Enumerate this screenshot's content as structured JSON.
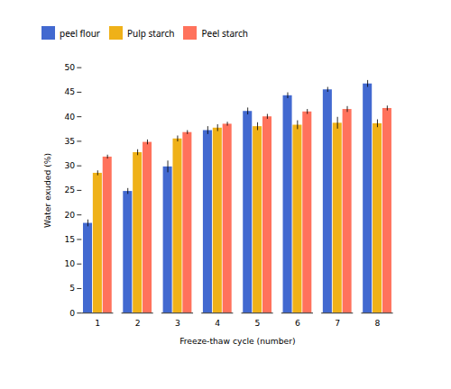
{
  "chart_data": {
    "type": "bar",
    "xlabel": "Freeze-thaw cycle (number)",
    "ylabel": "Water exuded (%)",
    "categories": [
      1,
      2,
      3,
      4,
      5,
      6,
      7,
      8
    ],
    "series": [
      {
        "name": "peel flour",
        "values": [
          18.3,
          24.8,
          29.8,
          37.2,
          41.1,
          44.3,
          45.5,
          46.7
        ],
        "errors": [
          0.7,
          0.6,
          1.2,
          0.8,
          0.7,
          0.6,
          0.5,
          0.7
        ]
      },
      {
        "name": "Pulp starch",
        "values": [
          28.5,
          32.7,
          35.5,
          37.7,
          38.0,
          38.3,
          38.7,
          38.6
        ],
        "errors": [
          0.5,
          0.6,
          0.6,
          0.7,
          0.8,
          0.9,
          1.2,
          0.8
        ]
      },
      {
        "name": "Peel starch",
        "values": [
          31.8,
          34.8,
          36.8,
          38.5,
          40.0,
          41.0,
          41.5,
          41.7
        ],
        "errors": [
          0.4,
          0.5,
          0.4,
          0.4,
          0.5,
          0.5,
          0.6,
          0.5
        ]
      }
    ],
    "ylim": [
      0,
      50
    ],
    "yticks": [
      0,
      5,
      10,
      15,
      20,
      25,
      30,
      35,
      40,
      45,
      50
    ],
    "grid": false,
    "legend": "upper left"
  }
}
